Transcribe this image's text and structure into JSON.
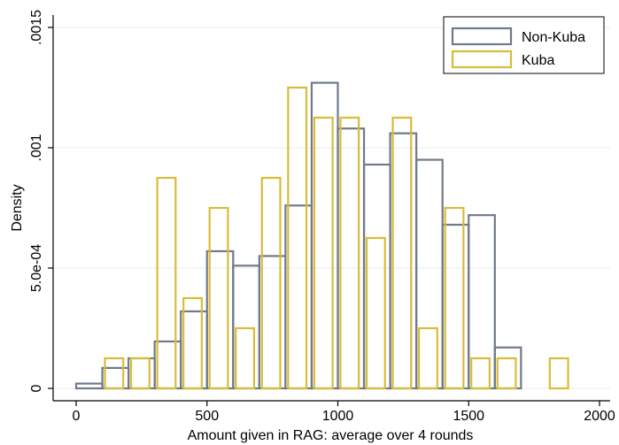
{
  "chart_data": {
    "type": "bar",
    "subtype": "histogram",
    "xlabel": "Amount given in RAG: average over 4 rounds",
    "ylabel": "Density",
    "xlim": [
      0,
      2000
    ],
    "ylim": [
      0,
      0.0015
    ],
    "x_ticks": [
      {
        "value": 0,
        "label": "0"
      },
      {
        "value": 500,
        "label": "500"
      },
      {
        "value": 1000,
        "label": "1000"
      },
      {
        "value": 1500,
        "label": "1500"
      },
      {
        "value": 2000,
        "label": "2000"
      }
    ],
    "y_ticks": [
      {
        "value": 0,
        "label": "0"
      },
      {
        "value": 0.0005,
        "label": "5.0e-04"
      },
      {
        "value": 0.001,
        "label": ".001"
      },
      {
        "value": 0.0015,
        "label": ".0015"
      }
    ],
    "grid": true,
    "legend_position": "top-right",
    "series": [
      {
        "name": "Non-Kuba",
        "color": "#707a8a",
        "bins": [
          {
            "x0": 0,
            "x1": 100,
            "y": 2e-05
          },
          {
            "x0": 100,
            "x1": 200,
            "y": 8.5e-05
          },
          {
            "x0": 200,
            "x1": 300,
            "y": 0.000125
          },
          {
            "x0": 300,
            "x1": 400,
            "y": 0.000195
          },
          {
            "x0": 400,
            "x1": 500,
            "y": 0.00032
          },
          {
            "x0": 500,
            "x1": 600,
            "y": 0.00057
          },
          {
            "x0": 600,
            "x1": 700,
            "y": 0.00051
          },
          {
            "x0": 700,
            "x1": 800,
            "y": 0.00055
          },
          {
            "x0": 800,
            "x1": 900,
            "y": 0.00076
          },
          {
            "x0": 900,
            "x1": 1000,
            "y": 0.00127
          },
          {
            "x0": 1000,
            "x1": 1100,
            "y": 0.00108
          },
          {
            "x0": 1100,
            "x1": 1200,
            "y": 0.00093
          },
          {
            "x0": 1200,
            "x1": 1300,
            "y": 0.00106
          },
          {
            "x0": 1300,
            "x1": 1400,
            "y": 0.00095
          },
          {
            "x0": 1400,
            "x1": 1500,
            "y": 0.00068
          },
          {
            "x0": 1500,
            "x1": 1600,
            "y": 0.00072
          },
          {
            "x0": 1600,
            "x1": 1700,
            "y": 0.00017
          }
        ]
      },
      {
        "name": "Kuba",
        "color": "#d8bc3a",
        "bins": [
          {
            "x0": 110,
            "x1": 180,
            "y": 0.000125
          },
          {
            "x0": 210,
            "x1": 280,
            "y": 0.000125
          },
          {
            "x0": 310,
            "x1": 380,
            "y": 0.000875
          },
          {
            "x0": 410,
            "x1": 480,
            "y": 0.000375
          },
          {
            "x0": 510,
            "x1": 580,
            "y": 0.00075
          },
          {
            "x0": 610,
            "x1": 680,
            "y": 0.00025
          },
          {
            "x0": 710,
            "x1": 780,
            "y": 0.000875
          },
          {
            "x0": 810,
            "x1": 880,
            "y": 0.00125
          },
          {
            "x0": 910,
            "x1": 980,
            "y": 0.001125
          },
          {
            "x0": 1010,
            "x1": 1080,
            "y": 0.001125
          },
          {
            "x0": 1110,
            "x1": 1180,
            "y": 0.000625
          },
          {
            "x0": 1210,
            "x1": 1280,
            "y": 0.001125
          },
          {
            "x0": 1310,
            "x1": 1380,
            "y": 0.00025
          },
          {
            "x0": 1410,
            "x1": 1480,
            "y": 0.00075
          },
          {
            "x0": 1510,
            "x1": 1580,
            "y": 0.000125
          },
          {
            "x0": 1610,
            "x1": 1680,
            "y": 0.000125
          },
          {
            "x0": 1810,
            "x1": 1880,
            "y": 0.000125
          }
        ]
      }
    ]
  }
}
